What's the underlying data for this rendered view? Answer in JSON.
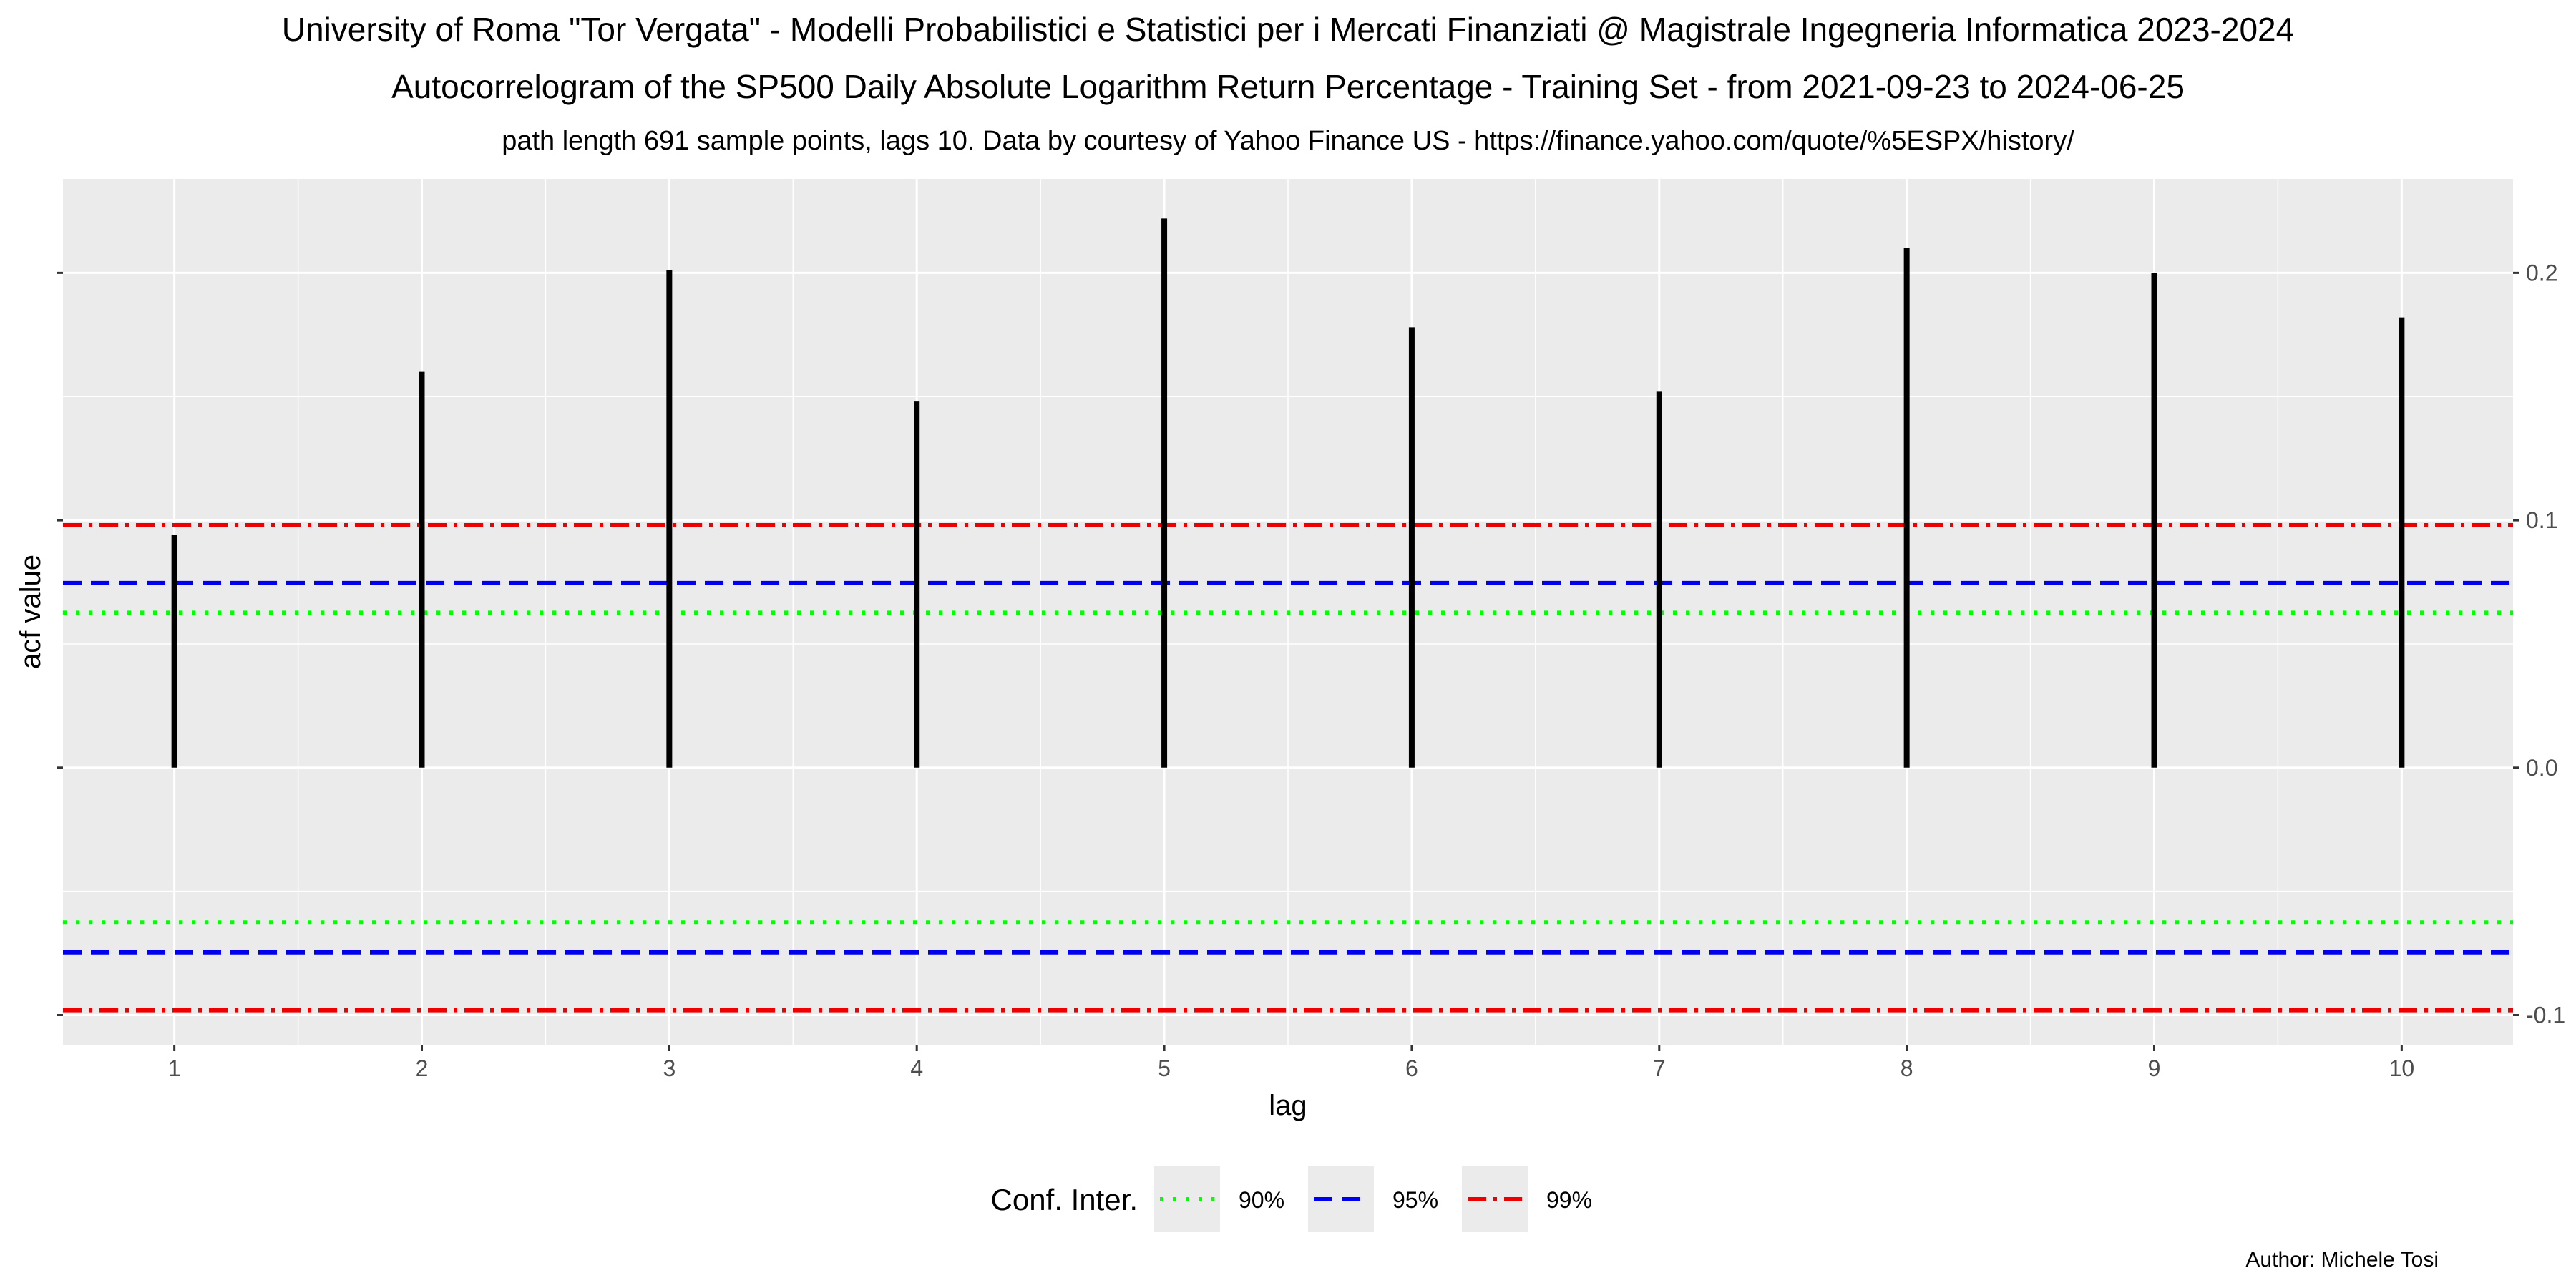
{
  "header": {
    "title": "University of Roma \"Tor Vergata\" - Modelli Probabilistici e Statistici per i Mercati Finanziati @ Magistrale Ingegneria Informatica 2023-2024",
    "subtitle": "Autocorrelogram of the SP500 Daily Absolute Logarithm Return Percentage - Training Set - from 2021-09-23 to 2024-06-25",
    "note": "path length 691 sample points,  lags 10.  Data by courtesy of Yahoo Finance US - https://finance.yahoo.com/quote/%5ESPX/history/"
  },
  "caption": "Author: Michele Tosi",
  "chart_data": {
    "type": "bar",
    "xlabel": "lag",
    "ylabel": "acf value",
    "x": [
      1,
      2,
      3,
      4,
      5,
      6,
      7,
      8,
      9,
      10
    ],
    "x_tick_labels": [
      "1",
      "2",
      "3",
      "4",
      "5",
      "6",
      "7",
      "8",
      "9",
      "10"
    ],
    "values": [
      0.094,
      0.16,
      0.201,
      0.148,
      0.222,
      0.178,
      0.152,
      0.21,
      0.2,
      0.182
    ],
    "xlim": [
      0.55,
      10.45
    ],
    "ylim": [
      -0.112,
      0.238
    ],
    "y_ticks": [
      -0.1,
      0.0,
      0.1,
      0.2
    ],
    "y_tick_labels": [
      "-0.1",
      "0.0",
      "0.1",
      "0.2"
    ],
    "y_axis_side": "both (labels on right)",
    "grid": true,
    "confidence_bands": [
      {
        "name": "90%",
        "value": 0.0626,
        "color": "#00ff00",
        "style": "dotted"
      },
      {
        "name": "95%",
        "value": 0.0746,
        "color": "#0000ee",
        "style": "dashed"
      },
      {
        "name": "99%",
        "value": 0.098,
        "color": "#ee0000",
        "style": "dashdot"
      }
    ],
    "legend": {
      "title": "Conf. Inter.",
      "position": "bottom"
    },
    "colors": {
      "panel": "#ebebeb",
      "grid": "#ffffff",
      "bars": "#000000",
      "axis_text": "#4d4d4d"
    }
  }
}
